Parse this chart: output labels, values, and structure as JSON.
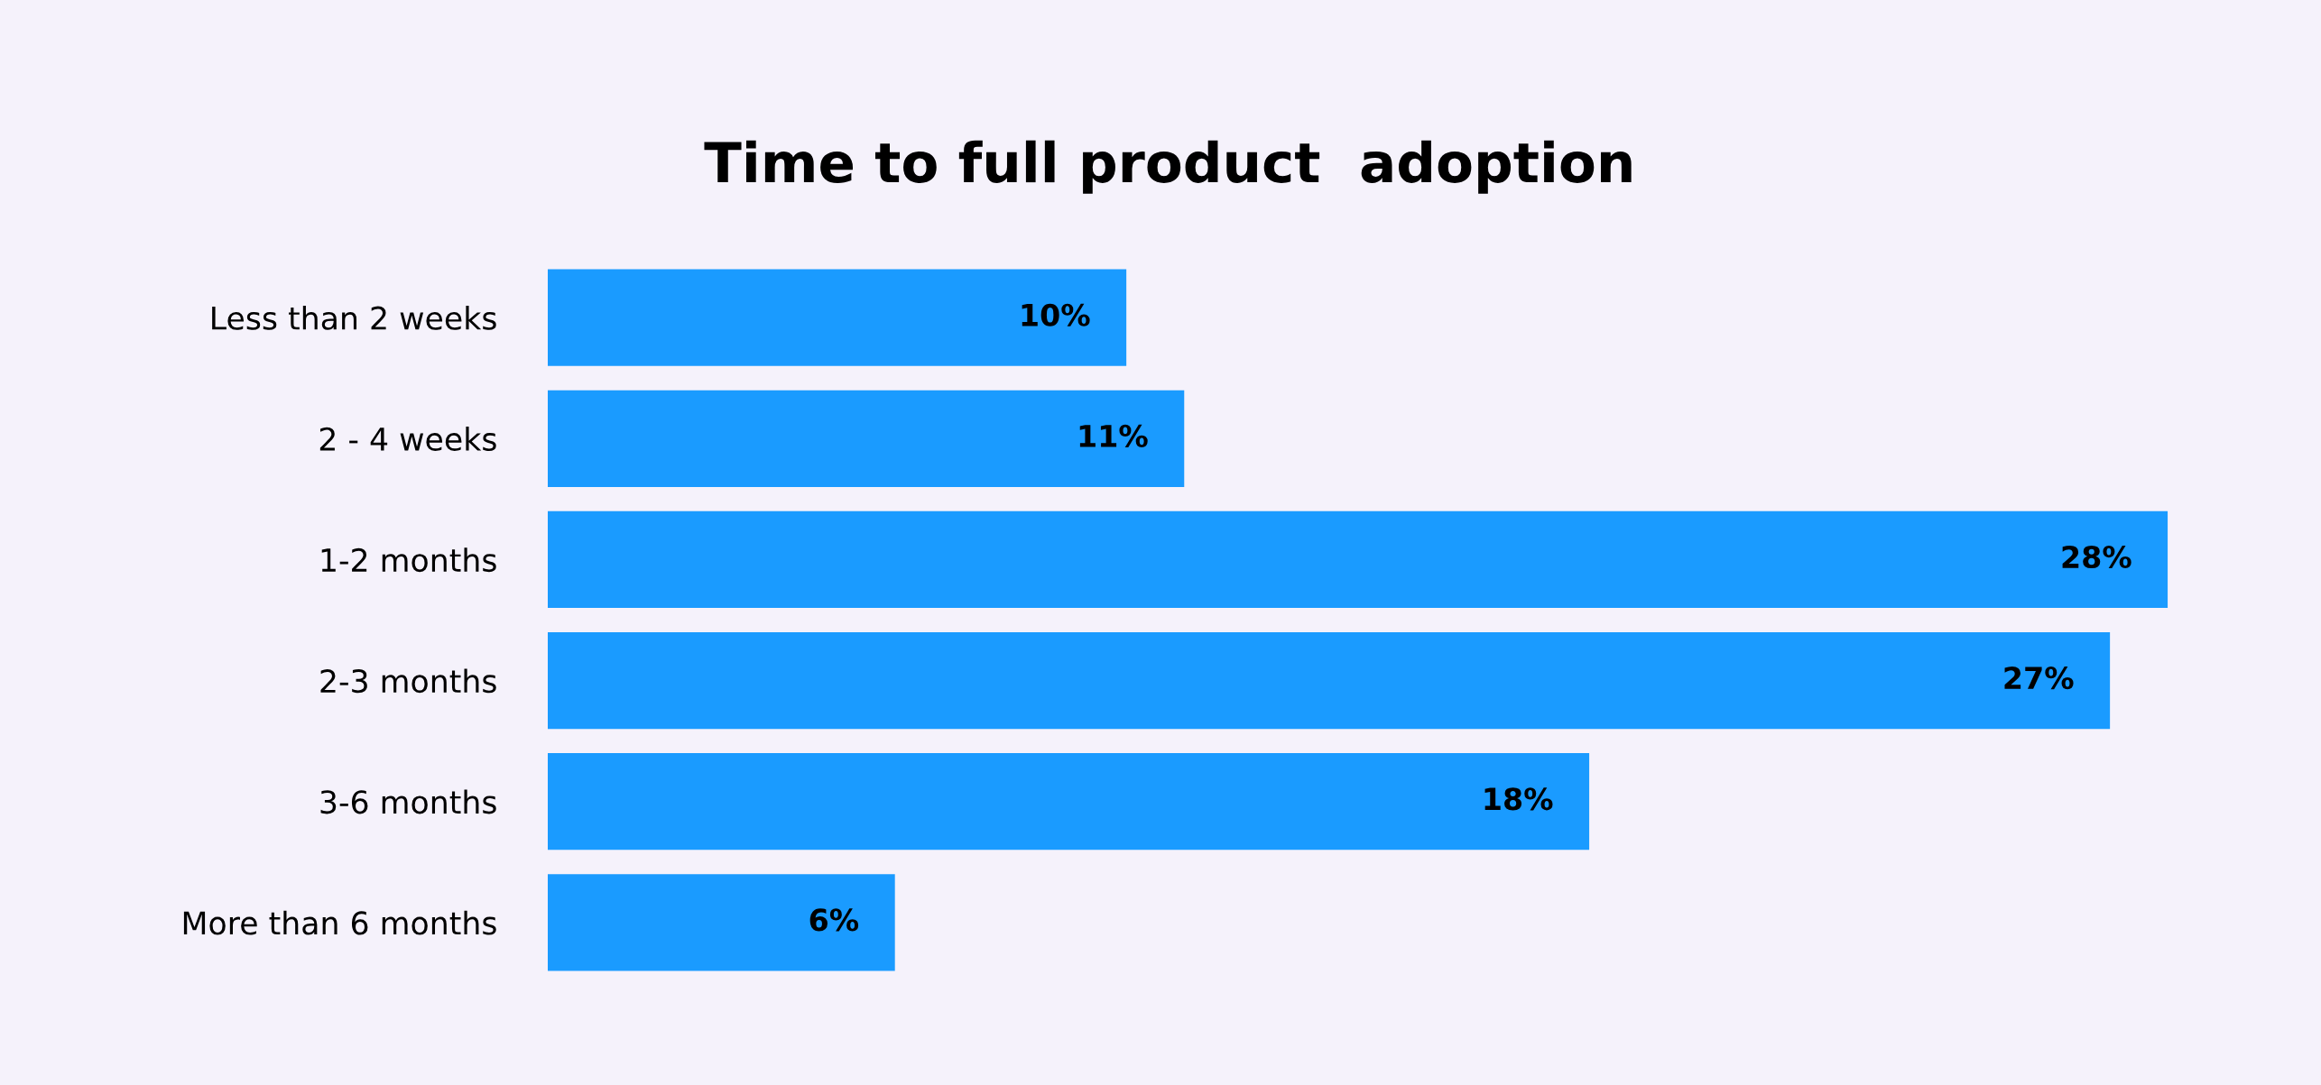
{
  "chart_data": {
    "type": "bar",
    "orientation": "horizontal",
    "title": "Time to full product  adoption",
    "categories": [
      "Less than 2 weeks",
      "2 - 4 weeks",
      "1-2 months",
      "2-3 months",
      "3-6 months",
      "More than 6 months"
    ],
    "values": [
      10,
      11,
      28,
      27,
      18,
      6
    ],
    "value_labels": [
      "10%",
      "11%",
      "28%",
      "27%",
      "18%",
      "6%"
    ],
    "color": "#1a9bff",
    "grid": false,
    "legend": false
  }
}
